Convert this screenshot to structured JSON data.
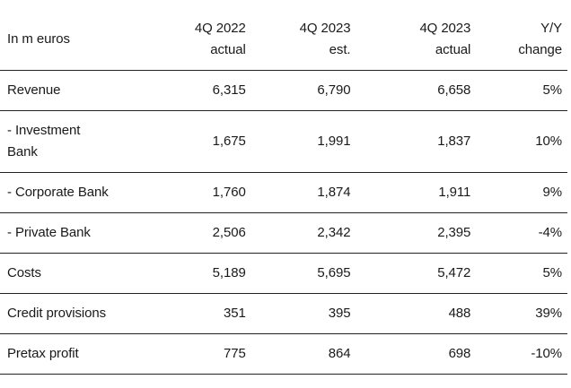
{
  "chart_data": {
    "type": "table",
    "columns": [
      {
        "line1": "In m euros",
        "line2": ""
      },
      {
        "line1": "4Q 2022",
        "line2": "actual"
      },
      {
        "line1": "4Q 2023",
        "line2": "est."
      },
      {
        "line1": "4Q 2023",
        "line2": "actual"
      },
      {
        "line1": "Y/Y",
        "line2": "change"
      }
    ],
    "rows": [
      {
        "label": "Revenue",
        "values": [
          "6,315",
          "6,790",
          "6,658",
          "5%"
        ]
      },
      {
        "label": "- Investment Bank",
        "values": [
          "1,675",
          "1,991",
          "1,837",
          "10%"
        ]
      },
      {
        "label": "- Corporate Bank",
        "values": [
          "1,760",
          "1,874",
          "1,911",
          "9%"
        ]
      },
      {
        "label": "- Private Bank",
        "values": [
          "2,506",
          "2,342",
          "2,395",
          "-4%"
        ]
      },
      {
        "label": "Costs",
        "values": [
          "5,189",
          "5,695",
          "5,472",
          "5%"
        ]
      },
      {
        "label": "Credit provisions",
        "values": [
          "351",
          "395",
          "488",
          "39%"
        ]
      },
      {
        "label": "Pretax profit",
        "values": [
          "775",
          "864",
          "698",
          "-10%"
        ]
      }
    ]
  }
}
